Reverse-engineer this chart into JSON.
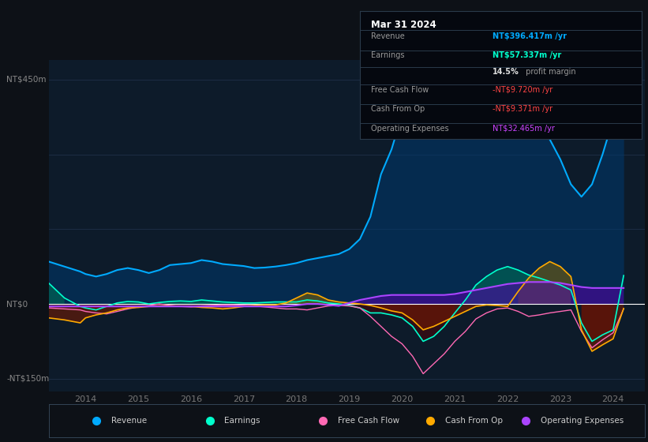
{
  "bg_color": "#0d1117",
  "plot_bg_color": "#0d1b2a",
  "title_box": {
    "date": "Mar 31 2024",
    "rows": [
      {
        "label": "Revenue",
        "value": "NT$396.417m /yr",
        "value_color": "#00aaff"
      },
      {
        "label": "Earnings",
        "value": "NT$57.337m /yr",
        "value_color": "#00ffcc"
      },
      {
        "label": "",
        "value": "14.5% profit margin",
        "value_color": "#cccccc"
      },
      {
        "label": "Free Cash Flow",
        "value": "-NT$9.720m /yr",
        "value_color": "#ff4444"
      },
      {
        "label": "Cash From Op",
        "value": "-NT$9.371m /yr",
        "value_color": "#ff4444"
      },
      {
        "label": "Operating Expenses",
        "value": "NT$32.465m /yr",
        "value_color": "#cc44ff"
      }
    ]
  },
  "ylabel_top": "NT$450m",
  "ylabel_zero": "NT$0",
  "ylabel_bottom": "-NT$150m",
  "ylim": [
    -175,
    490
  ],
  "xlim_start": 2013.3,
  "xlim_end": 2024.6,
  "xticks": [
    2014,
    2015,
    2016,
    2017,
    2018,
    2019,
    2020,
    2021,
    2022,
    2023,
    2024
  ],
  "legend": [
    {
      "label": "Revenue",
      "color": "#00aaff"
    },
    {
      "label": "Earnings",
      "color": "#00ffcc"
    },
    {
      "label": "Free Cash Flow",
      "color": "#ff69b4"
    },
    {
      "label": "Cash From Op",
      "color": "#ffaa00"
    },
    {
      "label": "Operating Expenses",
      "color": "#aa44ff"
    }
  ],
  "series": {
    "years": [
      2013.0,
      2013.3,
      2013.6,
      2013.9,
      2014.0,
      2014.2,
      2014.4,
      2014.6,
      2014.8,
      2015.0,
      2015.2,
      2015.4,
      2015.6,
      2015.8,
      2016.0,
      2016.2,
      2016.4,
      2016.6,
      2016.8,
      2017.0,
      2017.2,
      2017.4,
      2017.6,
      2017.8,
      2018.0,
      2018.2,
      2018.4,
      2018.6,
      2018.8,
      2019.0,
      2019.2,
      2019.4,
      2019.6,
      2019.8,
      2020.0,
      2020.2,
      2020.4,
      2020.6,
      2020.8,
      2021.0,
      2021.2,
      2021.4,
      2021.6,
      2021.8,
      2022.0,
      2022.2,
      2022.4,
      2022.6,
      2022.8,
      2023.0,
      2023.2,
      2023.4,
      2023.6,
      2023.8,
      2024.0,
      2024.2
    ],
    "revenue": [
      90,
      85,
      75,
      65,
      60,
      55,
      60,
      68,
      72,
      68,
      62,
      68,
      78,
      80,
      82,
      88,
      85,
      80,
      78,
      76,
      72,
      73,
      75,
      78,
      82,
      88,
      92,
      96,
      100,
      110,
      130,
      175,
      260,
      310,
      380,
      420,
      430,
      415,
      395,
      385,
      405,
      425,
      445,
      450,
      455,
      440,
      415,
      370,
      330,
      290,
      240,
      215,
      240,
      300,
      370,
      396
    ],
    "earnings": [
      55,
      42,
      12,
      -5,
      -8,
      -12,
      -5,
      2,
      5,
      4,
      0,
      3,
      5,
      6,
      5,
      8,
      6,
      4,
      3,
      2,
      2,
      3,
      4,
      4,
      4,
      8,
      6,
      2,
      0,
      -3,
      -8,
      -18,
      -18,
      -22,
      -28,
      -45,
      -75,
      -65,
      -45,
      -18,
      8,
      38,
      55,
      68,
      75,
      68,
      58,
      52,
      45,
      38,
      28,
      -38,
      -75,
      -62,
      -52,
      57
    ],
    "free_cash_flow": [
      -5,
      -8,
      -10,
      -12,
      -15,
      -18,
      -20,
      -15,
      -10,
      -6,
      -3,
      0,
      -3,
      -5,
      -6,
      -4,
      -3,
      -2,
      -2,
      -3,
      -4,
      -6,
      -8,
      -10,
      -10,
      -12,
      -8,
      -4,
      -3,
      -4,
      -8,
      -25,
      -45,
      -65,
      -80,
      -105,
      -140,
      -120,
      -100,
      -75,
      -55,
      -30,
      -18,
      -10,
      -8,
      -15,
      -25,
      -22,
      -18,
      -15,
      -12,
      -55,
      -88,
      -72,
      -58,
      -10
    ],
    "cash_from_op": [
      -35,
      -28,
      -32,
      -38,
      -28,
      -22,
      -18,
      -12,
      -8,
      -7,
      -5,
      -4,
      -4,
      -5,
      -5,
      -7,
      -8,
      -10,
      -8,
      -5,
      -3,
      -2,
      -2,
      2,
      12,
      22,
      18,
      8,
      4,
      2,
      0,
      -3,
      -8,
      -14,
      -18,
      -32,
      -52,
      -45,
      -35,
      -25,
      -15,
      -5,
      -2,
      -3,
      -5,
      25,
      52,
      72,
      85,
      75,
      55,
      -52,
      -95,
      -82,
      -70,
      -9
    ],
    "operating_expenses": [
      -5,
      -5,
      -5,
      -5,
      -5,
      -5,
      -5,
      -5,
      -5,
      -5,
      -5,
      -5,
      -5,
      -5,
      -5,
      -5,
      -5,
      -5,
      -5,
      -5,
      -5,
      -5,
      -5,
      -5,
      -3,
      0,
      0,
      -2,
      -4,
      2,
      8,
      12,
      16,
      18,
      18,
      18,
      18,
      18,
      18,
      20,
      24,
      28,
      32,
      36,
      40,
      42,
      44,
      44,
      44,
      42,
      38,
      34,
      32,
      32,
      32,
      32
    ]
  }
}
